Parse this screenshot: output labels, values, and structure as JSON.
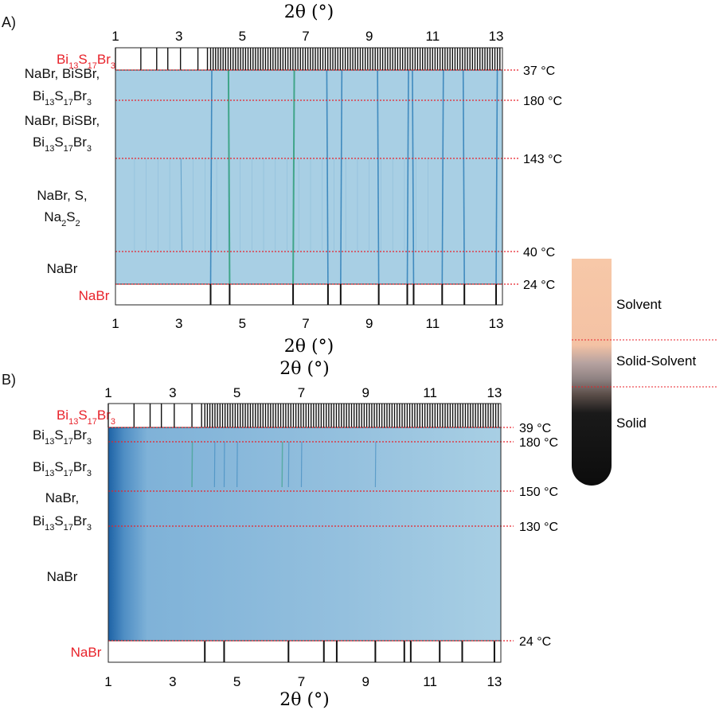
{
  "panels": [
    {
      "id": "A",
      "panel_label": "A)",
      "x_title": "2θ (°)",
      "ref_top": {
        "name_parts": [
          [
            "Bi",
            ""
          ],
          [
            "13",
            "sub"
          ],
          [
            "S",
            ""
          ],
          [
            "17",
            "sub"
          ],
          [
            "Br",
            ""
          ],
          [
            "3",
            "sub"
          ]
        ],
        "color": "#e8222a"
      },
      "ref_bottom": {
        "name_parts": [
          [
            "NaBr",
            ""
          ]
        ],
        "color": "#e8222a"
      },
      "phase_labels": [
        {
          "lines": [
            [
              [
                "NaBr, BiSBr,",
                ""
              ]
            ],
            [
              [
                "Bi",
                ""
              ],
              [
                "13",
                "sub"
              ],
              [
                "S",
                ""
              ],
              [
                "17",
                "sub"
              ],
              [
                "Br",
                ""
              ],
              [
                "3",
                "sub"
              ]
            ]
          ]
        },
        {
          "lines": [
            [
              [
                "NaBr, BiSBr,",
                ""
              ]
            ],
            [
              [
                "Bi",
                ""
              ],
              [
                "13",
                "sub"
              ],
              [
                "S",
                ""
              ],
              [
                "17",
                "sub"
              ],
              [
                "Br",
                ""
              ],
              [
                "3",
                "sub"
              ]
            ]
          ]
        },
        {
          "lines": [
            [
              [
                "NaBr, S,",
                ""
              ]
            ],
            [
              [
                "Na",
                ""
              ],
              [
                "2",
                "sub"
              ],
              [
                "S",
                ""
              ],
              [
                "2",
                "sub"
              ]
            ]
          ]
        },
        {
          "lines": [
            [
              [
                "NaBr",
                ""
              ]
            ]
          ]
        }
      ],
      "temperature_labels": [
        "37 °C",
        "180 °C",
        "143 °C",
        "40 °C",
        "24 °C"
      ]
    },
    {
      "id": "B",
      "panel_label": "B)",
      "x_title": "2θ (°)",
      "ref_top": {
        "name_parts": [
          [
            "Bi",
            ""
          ],
          [
            "13",
            "sub"
          ],
          [
            "S",
            ""
          ],
          [
            "17",
            "sub"
          ],
          [
            "Br",
            ""
          ],
          [
            "3",
            "sub"
          ]
        ],
        "color": "#e8222a"
      },
      "ref_bottom": {
        "name_parts": [
          [
            "NaBr",
            ""
          ]
        ],
        "color": "#e8222a"
      },
      "phase_labels": [
        {
          "lines": [
            [
              [
                "Bi",
                ""
              ],
              [
                "13",
                "sub"
              ],
              [
                "S",
                ""
              ],
              [
                "17",
                "sub"
              ],
              [
                "Br",
                ""
              ],
              [
                "3",
                "sub"
              ]
            ]
          ]
        },
        {
          "lines": [
            [
              [
                "Bi",
                ""
              ],
              [
                "13",
                "sub"
              ],
              [
                "S",
                ""
              ],
              [
                "17",
                "sub"
              ],
              [
                "Br",
                ""
              ],
              [
                "3",
                "sub"
              ]
            ]
          ]
        },
        {
          "lines": [
            [
              [
                "NaBr,",
                ""
              ]
            ],
            [
              [
                "Bi",
                ""
              ],
              [
                "13",
                "sub"
              ],
              [
                "S",
                ""
              ],
              [
                "17",
                "sub"
              ],
              [
                "Br",
                ""
              ],
              [
                "3",
                "sub"
              ]
            ]
          ]
        },
        {
          "lines": [
            [
              [
                "NaBr",
                ""
              ]
            ]
          ]
        }
      ],
      "temperature_labels": [
        "39 °C",
        "180 °C",
        "150 °C",
        "130 °C",
        "24 °C"
      ]
    }
  ],
  "legend": {
    "labels": [
      "Solvent",
      "Solid-Solvent",
      "Solid"
    ],
    "colors": {
      "solvent": "#f7c8a8",
      "solid_solvent": "#a09090",
      "solid": "#111111"
    }
  },
  "colors": {
    "heatmap_base": "#a8cfe4",
    "peak_line": "#2e7fb8",
    "peak_green": "#2f9e7a",
    "dark_band": "#1a64a8",
    "temp_line": "#e8222a"
  },
  "chart_data": [
    {
      "type": "heatmap",
      "panel": "A",
      "x_axis": {
        "label": "2θ (°)",
        "range": [
          1,
          13.2
        ],
        "ticks": [
          1,
          3,
          5,
          7,
          9,
          11,
          13
        ]
      },
      "reference_sticks": {
        "Bi13S17Br3": [
          1.0,
          1.8,
          2.3,
          2.65,
          3.05,
          3.6,
          3.9
        ],
        "NaBr": [
          4.0,
          4.6,
          6.6,
          7.7,
          8.1,
          9.3,
          10.2,
          10.4,
          11.3,
          12.0,
          13.0
        ]
      },
      "temperature_program": [
        "37 °C",
        "180 °C",
        "143 °C",
        "40 °C",
        "24 °C"
      ],
      "peaks_2theta": [
        3.1,
        4.0,
        4.6,
        6.6,
        7.7,
        8.1,
        9.3,
        10.2,
        10.4,
        11.3,
        12.0,
        13.0
      ]
    },
    {
      "type": "heatmap",
      "panel": "B",
      "x_axis": {
        "label": "2θ (°)",
        "range": [
          1,
          13.2
        ],
        "ticks": [
          1,
          3,
          5,
          7,
          9,
          11,
          13
        ]
      },
      "reference_sticks": {
        "Bi13S17Br3": [
          1.0,
          1.8,
          2.3,
          2.65,
          3.05,
          3.6,
          3.9
        ],
        "NaBr": [
          4.0,
          4.6,
          6.6,
          7.7,
          8.1,
          9.3,
          10.2,
          10.4,
          11.3,
          12.0,
          13.0
        ]
      },
      "temperature_program": [
        "39 °C",
        "180 °C",
        "150 °C",
        "130 °C",
        "24 °C"
      ],
      "peaks_2theta": [
        3.6,
        4.3,
        4.6,
        5.0,
        6.4,
        6.6,
        7.0,
        9.3
      ]
    }
  ]
}
